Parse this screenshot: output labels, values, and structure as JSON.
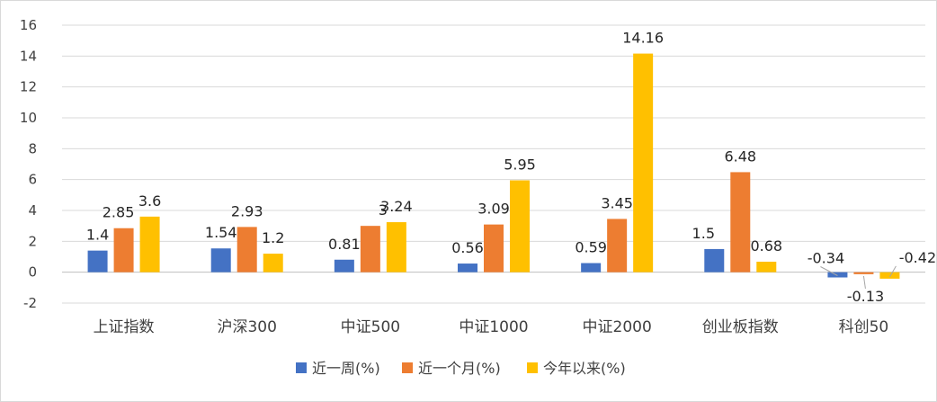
{
  "chart_data": {
    "type": "bar",
    "title": "",
    "xlabel": "",
    "ylabel": "",
    "ylim": [
      -2,
      16
    ],
    "yticks": [
      -2,
      0,
      2,
      4,
      6,
      8,
      10,
      12,
      14,
      16
    ],
    "grid": true,
    "legend_position": "bottom",
    "categories": [
      "上证指数",
      "沪深300",
      "中证500",
      "中证1000",
      "中证2000",
      "创业板指数",
      "科创50"
    ],
    "series": [
      {
        "name": "近一周(%)",
        "color": "#4472C4",
        "values": [
          1.4,
          1.54,
          0.81,
          0.56,
          0.59,
          1.5,
          -0.34
        ]
      },
      {
        "name": "近一个月(%)",
        "color": "#ED7D31",
        "values": [
          2.85,
          2.93,
          3,
          3.09,
          3.45,
          6.48,
          -0.13
        ]
      },
      {
        "name": "今年以来(%)",
        "color": "#FFC000",
        "values": [
          3.6,
          1.2,
          3.24,
          5.95,
          14.16,
          0.68,
          -0.42
        ]
      }
    ]
  }
}
